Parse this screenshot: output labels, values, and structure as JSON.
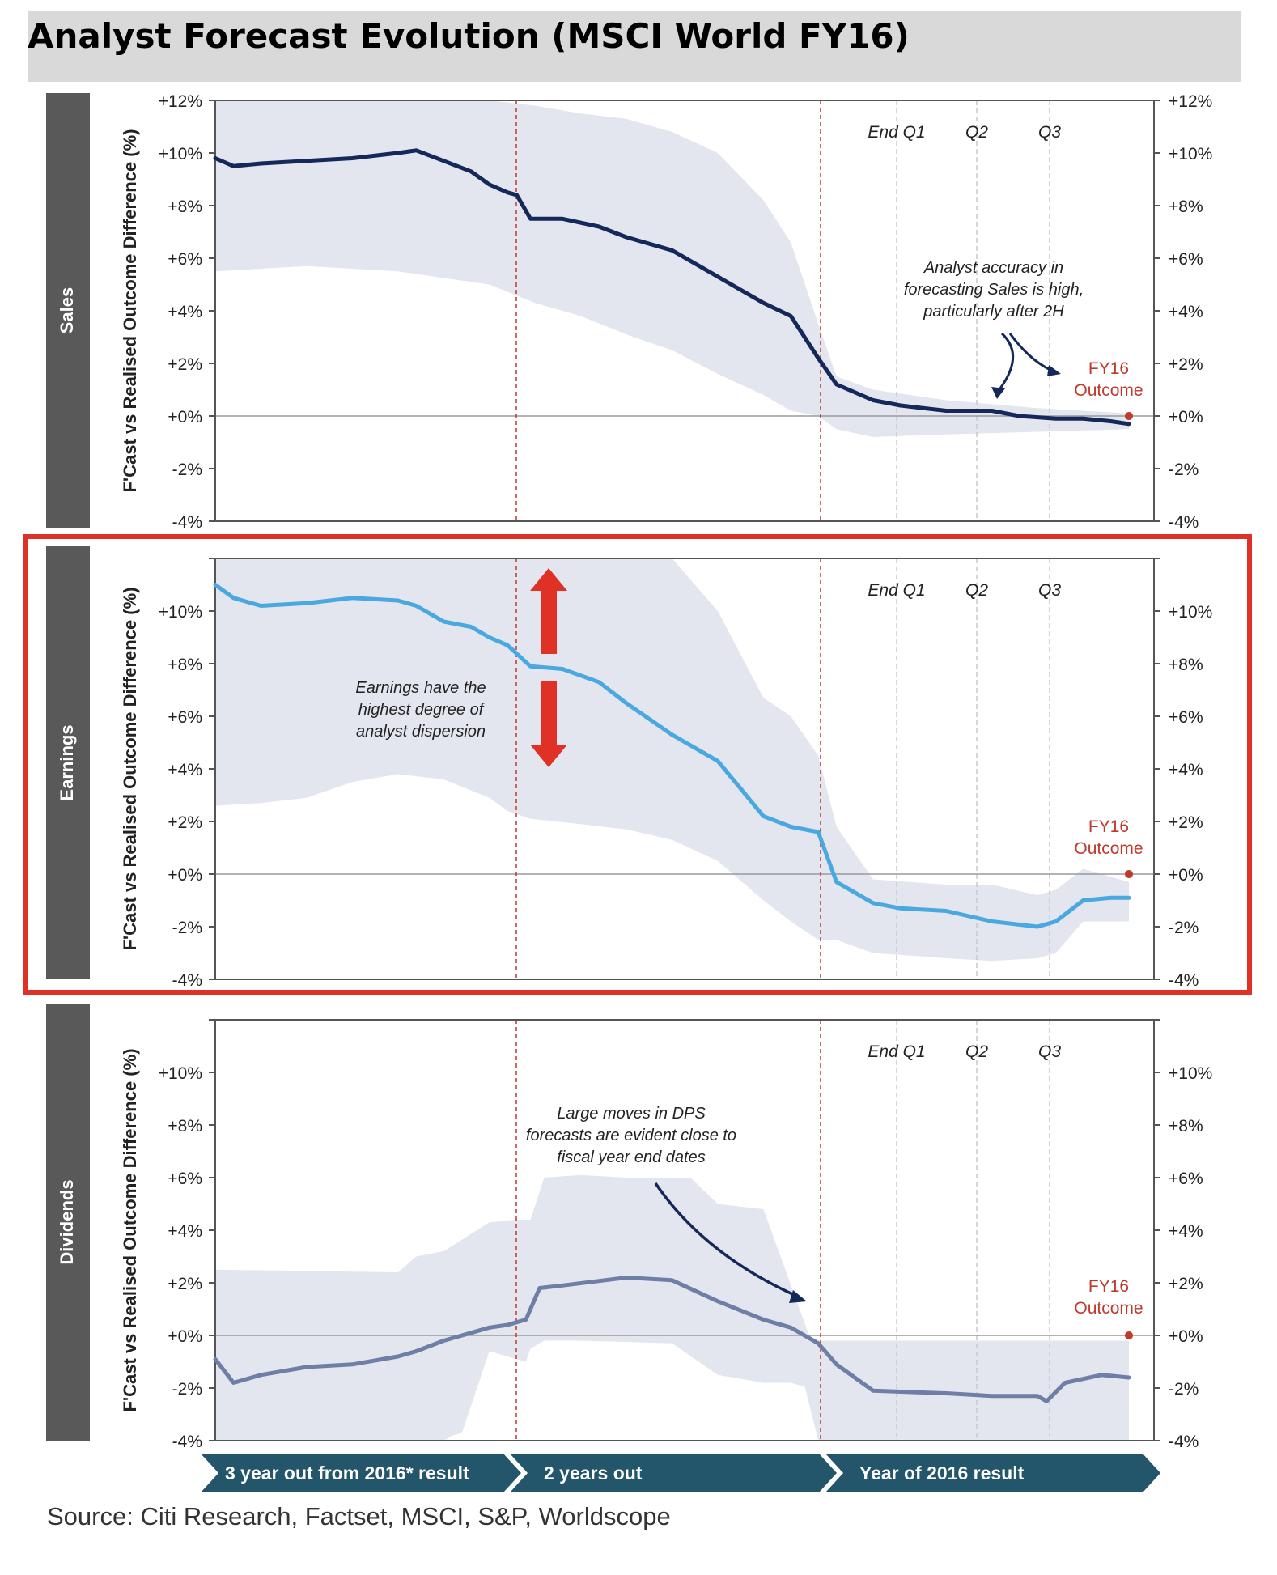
{
  "title": "Analyst Forecast Evolution (MSCI World FY16)",
  "source": "Source: Citi Research, Factset, MSCI, S&P, Worldscope",
  "y_axis_label": "F'Cast vs Realised Outcome Difference (%)",
  "quarter_labels": [
    "End Q1",
    "Q2",
    "Q3"
  ],
  "outcome_label": [
    "FY16",
    "Outcome"
  ],
  "timeline": [
    "3 year out from 2016* result",
    "2 years out",
    "Year of 2016 result"
  ],
  "colors": {
    "sales_line": "#14285a",
    "earnings_line": "#4aa8e0",
    "dividends_line": "#6e7fa6",
    "band": "#e3e6ee",
    "divider": "#c0392b",
    "highlight_box": "#e03127",
    "arrow": "#e03127",
    "side_label_bg": "#595959",
    "timeline_bg": "#24566b"
  },
  "chart_data": [
    {
      "type": "line",
      "panel": "Sales",
      "series": [
        {
          "name": "Sales"
        }
      ],
      "ylim": [
        -4,
        12
      ],
      "ytick_labels": [
        "+12%",
        "+10%",
        "+8%",
        "+6%",
        "+4%",
        "+2%",
        "+0%",
        "-2%",
        "-4%"
      ],
      "annotation": [
        "Analyst accuracy in",
        "forecasting Sales is high,",
        "particularly after 2H"
      ],
      "outcome_value": 0,
      "line": [
        [
          0,
          9.8
        ],
        [
          0.02,
          9.5
        ],
        [
          0.05,
          9.6
        ],
        [
          0.1,
          9.7
        ],
        [
          0.15,
          9.8
        ],
        [
          0.2,
          10.0
        ],
        [
          0.22,
          10.1
        ],
        [
          0.25,
          9.7
        ],
        [
          0.28,
          9.3
        ],
        [
          0.3,
          8.8
        ],
        [
          0.32,
          8.5
        ],
        [
          0.33,
          8.4
        ],
        [
          0.345,
          7.5
        ],
        [
          0.38,
          7.5
        ],
        [
          0.42,
          7.2
        ],
        [
          0.45,
          6.8
        ],
        [
          0.5,
          6.3
        ],
        [
          0.55,
          5.3
        ],
        [
          0.6,
          4.3
        ],
        [
          0.63,
          3.8
        ],
        [
          0.66,
          2.2
        ],
        [
          0.68,
          1.2
        ],
        [
          0.72,
          0.6
        ],
        [
          0.75,
          0.4
        ],
        [
          0.8,
          0.2
        ],
        [
          0.85,
          0.2
        ],
        [
          0.88,
          0.0
        ],
        [
          0.92,
          -0.1
        ],
        [
          0.95,
          -0.1
        ],
        [
          0.98,
          -0.2
        ],
        [
          1.0,
          -0.3
        ]
      ],
      "band_upper": [
        [
          0,
          12
        ],
        [
          0.3,
          12
        ],
        [
          0.35,
          11.8
        ],
        [
          0.4,
          11.5
        ],
        [
          0.45,
          11.3
        ],
        [
          0.5,
          10.8
        ],
        [
          0.55,
          10.0
        ],
        [
          0.6,
          8.2
        ],
        [
          0.63,
          6.6
        ],
        [
          0.66,
          3.5
        ],
        [
          0.68,
          1.5
        ],
        [
          0.72,
          1.0
        ],
        [
          0.8,
          0.6
        ],
        [
          0.9,
          0.3
        ],
        [
          1.0,
          0.1
        ]
      ],
      "band_lower": [
        [
          0,
          5.5
        ],
        [
          0.1,
          5.7
        ],
        [
          0.2,
          5.5
        ],
        [
          0.3,
          5.0
        ],
        [
          0.35,
          4.3
        ],
        [
          0.4,
          3.8
        ],
        [
          0.45,
          3.1
        ],
        [
          0.5,
          2.5
        ],
        [
          0.55,
          1.6
        ],
        [
          0.6,
          0.8
        ],
        [
          0.63,
          0.2
        ],
        [
          0.66,
          0.0
        ],
        [
          0.68,
          -0.5
        ],
        [
          0.72,
          -0.8
        ],
        [
          0.8,
          -0.7
        ],
        [
          0.9,
          -0.6
        ],
        [
          1.0,
          -0.5
        ]
      ]
    },
    {
      "type": "line",
      "panel": "Earnings",
      "series": [
        {
          "name": "Earnings"
        }
      ],
      "ylim": [
        -4,
        12
      ],
      "ytick_labels": [
        "+10%",
        "+8%",
        "+6%",
        "+4%",
        "+2%",
        "+0%",
        "-2%",
        "-4%"
      ],
      "annotation": [
        "Earnings have the",
        "highest degree of",
        "analyst dispersion"
      ],
      "outcome_value": 0,
      "line": [
        [
          0,
          11.0
        ],
        [
          0.02,
          10.5
        ],
        [
          0.05,
          10.2
        ],
        [
          0.1,
          10.3
        ],
        [
          0.15,
          10.5
        ],
        [
          0.2,
          10.4
        ],
        [
          0.22,
          10.2
        ],
        [
          0.25,
          9.6
        ],
        [
          0.28,
          9.4
        ],
        [
          0.3,
          9.0
        ],
        [
          0.32,
          8.7
        ],
        [
          0.345,
          7.9
        ],
        [
          0.38,
          7.8
        ],
        [
          0.42,
          7.3
        ],
        [
          0.45,
          6.5
        ],
        [
          0.5,
          5.3
        ],
        [
          0.55,
          4.3
        ],
        [
          0.6,
          2.2
        ],
        [
          0.63,
          1.8
        ],
        [
          0.66,
          1.6
        ],
        [
          0.68,
          -0.3
        ],
        [
          0.72,
          -1.1
        ],
        [
          0.75,
          -1.3
        ],
        [
          0.8,
          -1.4
        ],
        [
          0.85,
          -1.8
        ],
        [
          0.9,
          -2.0
        ],
        [
          0.92,
          -1.8
        ],
        [
          0.95,
          -1.0
        ],
        [
          0.98,
          -0.9
        ],
        [
          1.0,
          -0.9
        ]
      ],
      "band_upper": [
        [
          0,
          12
        ],
        [
          0.3,
          12
        ],
        [
          0.35,
          12
        ],
        [
          0.45,
          12
        ],
        [
          0.5,
          12
        ],
        [
          0.55,
          10.0
        ],
        [
          0.6,
          6.7
        ],
        [
          0.63,
          6.0
        ],
        [
          0.66,
          4.5
        ],
        [
          0.68,
          1.8
        ],
        [
          0.72,
          -0.2
        ],
        [
          0.8,
          -0.4
        ],
        [
          0.85,
          -0.4
        ],
        [
          0.9,
          -0.8
        ],
        [
          0.92,
          -0.6
        ],
        [
          0.95,
          0.2
        ],
        [
          1.0,
          -0.3
        ]
      ],
      "band_lower": [
        [
          0,
          2.6
        ],
        [
          0.05,
          2.7
        ],
        [
          0.1,
          2.9
        ],
        [
          0.15,
          3.5
        ],
        [
          0.2,
          3.8
        ],
        [
          0.25,
          3.6
        ],
        [
          0.3,
          2.9
        ],
        [
          0.32,
          2.4
        ],
        [
          0.345,
          2.1
        ],
        [
          0.4,
          1.9
        ],
        [
          0.45,
          1.7
        ],
        [
          0.5,
          1.3
        ],
        [
          0.55,
          0.5
        ],
        [
          0.6,
          -1.0
        ],
        [
          0.63,
          -1.8
        ],
        [
          0.66,
          -2.5
        ],
        [
          0.68,
          -2.5
        ],
        [
          0.72,
          -3.0
        ],
        [
          0.8,
          -3.2
        ],
        [
          0.85,
          -3.3
        ],
        [
          0.9,
          -3.2
        ],
        [
          0.92,
          -3.0
        ],
        [
          0.95,
          -1.8
        ],
        [
          1.0,
          -1.8
        ]
      ]
    },
    {
      "type": "line",
      "panel": "Dividends",
      "series": [
        {
          "name": "Dividends"
        }
      ],
      "ylim": [
        -4,
        12
      ],
      "ytick_labels": [
        "+10%",
        "+8%",
        "+6%",
        "+4%",
        "+2%",
        "+0%",
        "-2%",
        "-4%"
      ],
      "annotation": [
        "Large moves in DPS",
        "forecasts are evident close to",
        "fiscal year end dates"
      ],
      "outcome_value": 0,
      "line": [
        [
          0,
          -0.9
        ],
        [
          0.02,
          -1.8
        ],
        [
          0.05,
          -1.5
        ],
        [
          0.1,
          -1.2
        ],
        [
          0.15,
          -1.1
        ],
        [
          0.2,
          -0.8
        ],
        [
          0.22,
          -0.6
        ],
        [
          0.25,
          -0.2
        ],
        [
          0.28,
          0.1
        ],
        [
          0.3,
          0.3
        ],
        [
          0.32,
          0.4
        ],
        [
          0.34,
          0.6
        ],
        [
          0.355,
          1.8
        ],
        [
          0.38,
          1.9
        ],
        [
          0.45,
          2.2
        ],
        [
          0.5,
          2.1
        ],
        [
          0.55,
          1.3
        ],
        [
          0.6,
          0.6
        ],
        [
          0.63,
          0.3
        ],
        [
          0.66,
          -0.3
        ],
        [
          0.68,
          -1.1
        ],
        [
          0.72,
          -2.1
        ],
        [
          0.8,
          -2.2
        ],
        [
          0.85,
          -2.3
        ],
        [
          0.9,
          -2.3
        ],
        [
          0.91,
          -2.5
        ],
        [
          0.93,
          -1.8
        ],
        [
          0.97,
          -1.5
        ],
        [
          1.0,
          -1.6
        ]
      ],
      "band_upper": [
        [
          0,
          2.5
        ],
        [
          0.2,
          2.4
        ],
        [
          0.22,
          3.0
        ],
        [
          0.25,
          3.2
        ],
        [
          0.3,
          4.3
        ],
        [
          0.33,
          4.4
        ],
        [
          0.345,
          4.4
        ],
        [
          0.36,
          6.0
        ],
        [
          0.4,
          6.1
        ],
        [
          0.45,
          6.0
        ],
        [
          0.52,
          6.0
        ],
        [
          0.55,
          5.0
        ],
        [
          0.6,
          4.8
        ],
        [
          0.65,
          0.0
        ],
        [
          0.66,
          -0.2
        ],
        [
          0.7,
          -0.2
        ],
        [
          1.0,
          -0.2
        ]
      ],
      "band_lower": [
        [
          0,
          -4
        ],
        [
          0.25,
          -4
        ],
        [
          0.26,
          -3.8
        ],
        [
          0.26,
          -3.8
        ],
        [
          0.27,
          -3.7
        ],
        [
          0.3,
          -0.6
        ],
        [
          0.34,
          -1.0
        ],
        [
          0.345,
          -0.5
        ],
        [
          0.36,
          -0.2
        ],
        [
          0.4,
          -0.2
        ],
        [
          0.5,
          -0.3
        ],
        [
          0.55,
          -1.5
        ],
        [
          0.6,
          -1.8
        ],
        [
          0.63,
          -1.8
        ],
        [
          0.64,
          -1.9
        ],
        [
          0.645,
          -1.9
        ],
        [
          0.66,
          -4
        ],
        [
          1.0,
          -4
        ]
      ]
    }
  ]
}
